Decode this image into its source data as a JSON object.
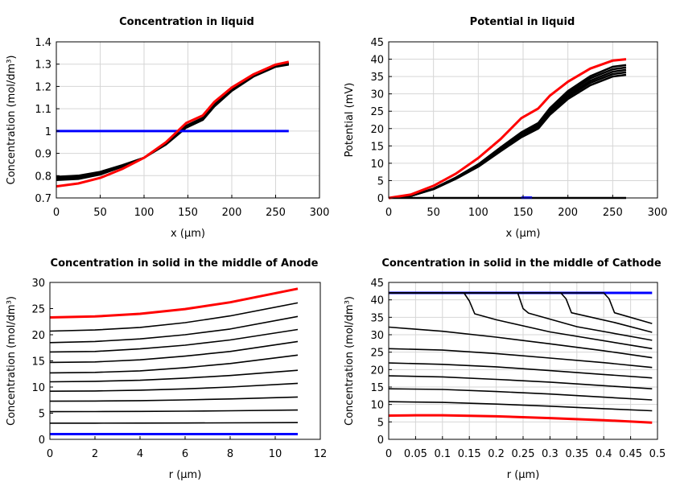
{
  "chart_data": [
    {
      "type": "line",
      "title": "Concentration in liquid",
      "xlabel": "x (µm)",
      "ylabel": "Concentration (mol/dm³)",
      "xlim": [
        0,
        300
      ],
      "ylim": [
        0.7,
        1.4
      ],
      "xticks": [
        0,
        50,
        100,
        150,
        200,
        250,
        300
      ],
      "yticks": [
        0.7,
        0.8,
        0.9,
        1,
        1.1,
        1.2,
        1.3,
        1.4
      ],
      "grid": true,
      "series": [
        {
          "color": "#000000",
          "x": [
            0,
            25,
            50,
            75,
            100,
            125,
            148,
            167,
            180,
            200,
            225,
            250,
            265
          ],
          "y": [
            0.78,
            0.785,
            0.805,
            0.84,
            0.88,
            0.94,
            1.015,
            1.05,
            1.11,
            1.18,
            1.245,
            1.288,
            1.298
          ]
        },
        {
          "color": "#000000",
          "x": [
            0,
            25,
            50,
            75,
            100,
            125,
            148,
            167,
            180,
            200,
            225,
            250,
            265
          ],
          "y": [
            0.785,
            0.79,
            0.81,
            0.842,
            0.88,
            0.942,
            1.018,
            1.053,
            1.113,
            1.183,
            1.248,
            1.291,
            1.301
          ]
        },
        {
          "color": "#000000",
          "x": [
            0,
            25,
            50,
            75,
            100,
            125,
            148,
            167,
            180,
            200,
            225,
            250,
            265
          ],
          "y": [
            0.79,
            0.795,
            0.813,
            0.845,
            0.88,
            0.944,
            1.021,
            1.056,
            1.116,
            1.186,
            1.251,
            1.294,
            1.304
          ]
        },
        {
          "color": "#000000",
          "x": [
            0,
            25,
            50,
            75,
            100,
            125,
            148,
            167,
            180,
            200,
            225,
            250,
            265
          ],
          "y": [
            0.795,
            0.8,
            0.817,
            0.847,
            0.88,
            0.946,
            1.024,
            1.059,
            1.119,
            1.189,
            1.254,
            1.297,
            1.306
          ]
        },
        {
          "color": "#0000ff",
          "x": [
            0,
            265
          ],
          "y": [
            1,
            1
          ]
        },
        {
          "color": "#ff0000",
          "x": [
            0,
            25,
            50,
            75,
            100,
            125,
            148,
            167,
            180,
            200,
            225,
            250,
            265
          ],
          "y": [
            0.752,
            0.765,
            0.79,
            0.83,
            0.88,
            0.95,
            1.036,
            1.07,
            1.13,
            1.195,
            1.255,
            1.298,
            1.31
          ]
        }
      ]
    },
    {
      "type": "line",
      "title": "Potential in liquid",
      "xlabel": "x (µm)",
      "ylabel": "Potential (mV)",
      "xlim": [
        0,
        300
      ],
      "ylim": [
        0,
        45
      ],
      "xticks": [
        0,
        50,
        100,
        150,
        200,
        250,
        300
      ],
      "yticks": [
        0,
        5,
        10,
        15,
        20,
        25,
        30,
        35,
        40,
        45
      ],
      "grid": true,
      "series": [
        {
          "color": "#000000",
          "x": [
            0,
            25,
            50,
            75,
            100,
            125,
            148,
            167,
            180,
            200,
            225,
            250,
            265
          ],
          "y": [
            0,
            0.6,
            2.5,
            5.5,
            9,
            13.5,
            17.5,
            20,
            24,
            28.5,
            32.5,
            35,
            35.5
          ]
        },
        {
          "color": "#000000",
          "x": [
            0,
            25,
            50,
            75,
            100,
            125,
            148,
            167,
            180,
            200,
            225,
            250,
            265
          ],
          "y": [
            0,
            0.6,
            2.6,
            5.6,
            9.2,
            13.8,
            17.9,
            20.4,
            24.5,
            29.1,
            33.2,
            35.7,
            36.2
          ]
        },
        {
          "color": "#000000",
          "x": [
            0,
            25,
            50,
            75,
            100,
            125,
            148,
            167,
            180,
            200,
            225,
            250,
            265
          ],
          "y": [
            0,
            0.6,
            2.6,
            5.7,
            9.4,
            14,
            18.2,
            20.8,
            25,
            29.6,
            33.8,
            36.4,
            36.9
          ]
        },
        {
          "color": "#000000",
          "x": [
            0,
            25,
            50,
            75,
            100,
            125,
            148,
            167,
            180,
            200,
            225,
            250,
            265
          ],
          "y": [
            0,
            0.6,
            2.7,
            5.8,
            9.5,
            14.3,
            18.6,
            21.2,
            25.4,
            30.2,
            34.5,
            37.1,
            37.6
          ]
        },
        {
          "color": "#000000",
          "x": [
            0,
            25,
            50,
            75,
            100,
            125,
            148,
            167,
            180,
            200,
            225,
            250,
            265
          ],
          "y": [
            0,
            0.6,
            2.7,
            5.9,
            9.7,
            14.6,
            18.9,
            21.6,
            25.9,
            30.8,
            35.1,
            37.8,
            38.3
          ]
        },
        {
          "color": "#000000",
          "x": [
            0,
            265
          ],
          "y": [
            0,
            0
          ]
        },
        {
          "color": "#0000ff",
          "x": [
            148,
            160
          ],
          "y": [
            0.1,
            0.1
          ]
        },
        {
          "color": "#ff0000",
          "x": [
            0,
            25,
            50,
            75,
            100,
            125,
            148,
            167,
            180,
            200,
            225,
            250,
            265
          ],
          "y": [
            0,
            1,
            3.5,
            7,
            11.5,
            17,
            23,
            25.8,
            29.5,
            33.5,
            37.3,
            39.6,
            40
          ]
        }
      ]
    },
    {
      "type": "line",
      "title": "Concentration in solid in the middle of Anode",
      "xlabel": "r (µm)",
      "ylabel": "Concentration (mol/dm³)",
      "xlim": [
        0,
        12
      ],
      "ylim": [
        0,
        30
      ],
      "xticks": [
        0,
        2,
        4,
        6,
        8,
        10,
        12
      ],
      "yticks": [
        0,
        5,
        10,
        15,
        20,
        25,
        30
      ],
      "grid": false,
      "series": [
        {
          "color": "#000000",
          "x": [
            0,
            2,
            4,
            6,
            8,
            11
          ],
          "y": [
            20.7,
            20.9,
            21.4,
            22.3,
            23.6,
            26.1
          ]
        },
        {
          "color": "#000000",
          "x": [
            0,
            2,
            4,
            6,
            8,
            11
          ],
          "y": [
            18.5,
            18.7,
            19.2,
            20.0,
            21.1,
            23.5
          ]
        },
        {
          "color": "#000000",
          "x": [
            0,
            2,
            4,
            6,
            8,
            11
          ],
          "y": [
            16.7,
            16.8,
            17.3,
            18.0,
            19.0,
            21.0
          ]
        },
        {
          "color": "#000000",
          "x": [
            0,
            2,
            4,
            6,
            8,
            11
          ],
          "y": [
            14.7,
            14.8,
            15.2,
            15.9,
            16.8,
            18.7
          ]
        },
        {
          "color": "#000000",
          "x": [
            0,
            2,
            4,
            6,
            8,
            11
          ],
          "y": [
            12.7,
            12.8,
            13.1,
            13.7,
            14.5,
            16.1
          ]
        },
        {
          "color": "#000000",
          "x": [
            0,
            2,
            4,
            6,
            8,
            11
          ],
          "y": [
            11.0,
            11.1,
            11.3,
            11.7,
            12.2,
            13.2
          ]
        },
        {
          "color": "#000000",
          "x": [
            0,
            2,
            4,
            6,
            8,
            11
          ],
          "y": [
            9.2,
            9.25,
            9.4,
            9.65,
            10.0,
            10.7
          ]
        },
        {
          "color": "#000000",
          "x": [
            0,
            2,
            4,
            6,
            8,
            11
          ],
          "y": [
            7.3,
            7.33,
            7.4,
            7.54,
            7.72,
            8.1
          ]
        },
        {
          "color": "#000000",
          "x": [
            0,
            2,
            4,
            6,
            8,
            11
          ],
          "y": [
            5.3,
            5.31,
            5.34,
            5.39,
            5.46,
            5.6
          ]
        },
        {
          "color": "#000000",
          "x": [
            0,
            2,
            4,
            6,
            8,
            11
          ],
          "y": [
            3.1,
            3.1,
            3.11,
            3.13,
            3.15,
            3.2
          ]
        },
        {
          "color": "#0000ff",
          "x": [
            0,
            11
          ],
          "y": [
            1,
            1
          ]
        },
        {
          "color": "#ff0000",
          "x": [
            0,
            2,
            4,
            6,
            8,
            11
          ],
          "y": [
            23.3,
            23.5,
            24.0,
            24.9,
            26.2,
            28.8
          ]
        }
      ]
    },
    {
      "type": "line",
      "title": "Concentration in solid in the middle of Cathode",
      "xlabel": "r (µm)",
      "ylabel": "Concentration (mol/dm³)",
      "xlim": [
        0,
        0.5
      ],
      "ylim": [
        0,
        45
      ],
      "xticks": [
        0,
        0.05,
        0.1,
        0.15,
        0.2,
        0.25,
        0.3,
        0.35,
        0.4,
        0.45,
        0.5
      ],
      "yticks": [
        0,
        5,
        10,
        15,
        20,
        25,
        30,
        35,
        40,
        45
      ],
      "grid": true,
      "series": [
        {
          "color": "#0000ff",
          "x": [
            0,
            0.49
          ],
          "y": [
            42,
            42
          ]
        },
        {
          "color": "#000000",
          "x": [
            0,
            0.4,
            0.41,
            0.42,
            0.49
          ],
          "y": [
            42,
            42,
            40.3,
            36.3,
            33.2
          ]
        },
        {
          "color": "#000000",
          "x": [
            0,
            0.32,
            0.33,
            0.34,
            0.42,
            0.49
          ],
          "y": [
            42,
            42,
            40.3,
            36.3,
            33.5,
            30.7
          ]
        },
        {
          "color": "#000000",
          "x": [
            0,
            0.24,
            0.25,
            0.26,
            0.35,
            0.49
          ],
          "y": [
            42,
            42,
            37.5,
            36.2,
            32.3,
            28.4
          ]
        },
        {
          "color": "#000000",
          "x": [
            0,
            0.14,
            0.15,
            0.16,
            0.2,
            0.3,
            0.49
          ],
          "y": [
            42,
            42,
            39.7,
            36,
            34.3,
            30.8,
            26.0
          ]
        },
        {
          "color": "#000000",
          "x": [
            0,
            0.1,
            0.2,
            0.3,
            0.4,
            0.49
          ],
          "y": [
            32.2,
            31,
            29.3,
            27.4,
            25.4,
            23.4
          ]
        },
        {
          "color": "#000000",
          "x": [
            0,
            0.1,
            0.2,
            0.3,
            0.4,
            0.49
          ],
          "y": [
            26,
            25.6,
            24.6,
            23.3,
            22,
            20.6
          ]
        },
        {
          "color": "#000000",
          "x": [
            0,
            0.1,
            0.2,
            0.3,
            0.4,
            0.49
          ],
          "y": [
            21.9,
            21.5,
            20.8,
            19.7,
            18.6,
            17.6
          ]
        },
        {
          "color": "#000000",
          "x": [
            0,
            0.1,
            0.2,
            0.3,
            0.4,
            0.49
          ],
          "y": [
            18.2,
            17.9,
            17.2,
            16.4,
            15.4,
            14.5
          ]
        },
        {
          "color": "#000000",
          "x": [
            0,
            0.1,
            0.2,
            0.3,
            0.4,
            0.49
          ],
          "y": [
            14.5,
            14.3,
            13.7,
            13,
            12.1,
            11.3
          ]
        },
        {
          "color": "#000000",
          "x": [
            0,
            0.1,
            0.2,
            0.3,
            0.4,
            0.49
          ],
          "y": [
            10.8,
            10.6,
            10.1,
            9.5,
            8.8,
            8.2
          ]
        },
        {
          "color": "#ff0000",
          "x": [
            0,
            0.05,
            0.1,
            0.2,
            0.3,
            0.4,
            0.49
          ],
          "y": [
            6.8,
            6.9,
            6.9,
            6.6,
            6.1,
            5.5,
            4.8
          ]
        }
      ]
    }
  ]
}
